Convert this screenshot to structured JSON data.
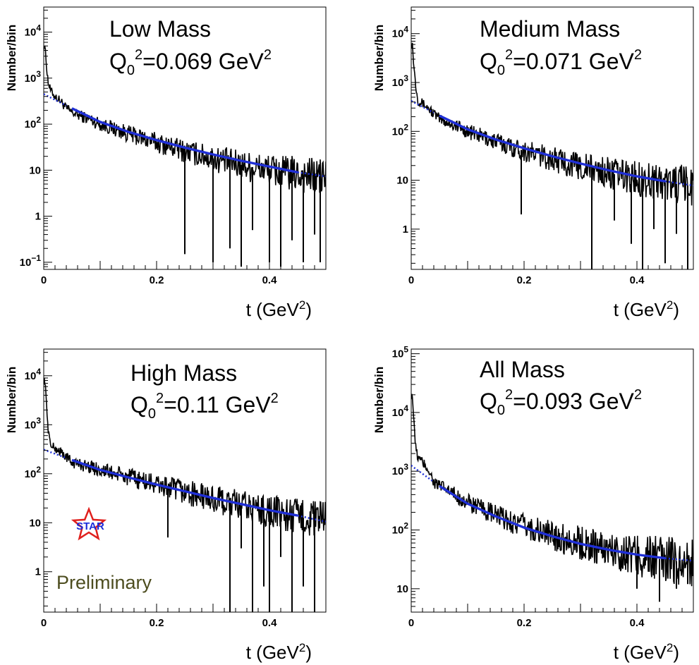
{
  "figure": {
    "preliminary_label": "Preliminary",
    "logo_text": "STAR"
  },
  "chart_data": [
    {
      "type": "line",
      "title": "Low Mass",
      "q0_label": "Q",
      "q0_sub": "0",
      "q0_sup": "2",
      "q0_value": "=0.069 GeV",
      "q0_value_sup": "2",
      "xlabel": "t (GeV",
      "xlabel_sup": "2",
      "xlabel_close": ")",
      "ylabel": "Number/bin",
      "yscale": "log",
      "ylim": [
        0.07,
        35000
      ],
      "xlim": [
        0,
        0.5
      ],
      "x_ticks": [
        "0",
        "0.2",
        "0.4"
      ],
      "y_ticks": [
        {
          "value": 0.1,
          "base": "10",
          "exp": "−1"
        },
        {
          "value": 1,
          "base": "1",
          "exp": ""
        },
        {
          "value": 10,
          "base": "10",
          "exp": ""
        },
        {
          "value": 100,
          "base": "10",
          "exp": "2"
        },
        {
          "value": 1000,
          "base": "10",
          "exp": "3"
        },
        {
          "value": 10000,
          "base": "10",
          "exp": "4"
        }
      ],
      "series": [
        {
          "name": "data",
          "color": "#000000",
          "x": [
            0.002,
            0.005,
            0.008,
            0.012,
            0.02,
            0.03,
            0.04,
            0.05,
            0.06,
            0.08,
            0.1,
            0.15,
            0.2,
            0.25,
            0.3,
            0.35,
            0.4,
            0.45,
            0.5
          ],
          "values": [
            5000,
            1800,
            800,
            550,
            400,
            320,
            220,
            180,
            160,
            130,
            100,
            62,
            40,
            26,
            18,
            13,
            10,
            8,
            7
          ],
          "dips": [
            [
              0.25,
              0.15
            ],
            [
              0.3,
              0.1
            ],
            [
              0.35,
              0.08
            ],
            [
              0.33,
              0.2
            ],
            [
              0.37,
              0.5
            ],
            [
              0.4,
              0.1
            ],
            [
              0.42,
              0.08
            ],
            [
              0.44,
              0.3
            ],
            [
              0.46,
              0.1
            ],
            [
              0.48,
              0.4
            ],
            [
              0.49,
              0.1
            ]
          ]
        },
        {
          "name": "fit",
          "color": "#1f2fd6",
          "x": [
            0.0,
            0.05,
            0.1,
            0.15,
            0.2,
            0.25,
            0.3,
            0.35,
            0.4,
            0.45,
            0.5
          ],
          "values": [
            450,
            220,
            112,
            68,
            45,
            31,
            22,
            16,
            12,
            9,
            7.3
          ]
        }
      ]
    },
    {
      "type": "line",
      "title": "Medium Mass",
      "q0_label": "Q",
      "q0_sub": "0",
      "q0_sup": "2",
      "q0_value": "=0.071 GeV",
      "q0_value_sup": "2",
      "xlabel": "t (GeV",
      "xlabel_sup": "2",
      "xlabel_close": ")",
      "ylabel": "Number/bin",
      "yscale": "log",
      "ylim": [
        0.15,
        35000
      ],
      "xlim": [
        0,
        0.5
      ],
      "x_ticks": [
        "0",
        "0.2",
        "0.4"
      ],
      "y_ticks": [
        {
          "value": 1,
          "base": "1",
          "exp": ""
        },
        {
          "value": 10,
          "base": "10",
          "exp": ""
        },
        {
          "value": 100,
          "base": "10",
          "exp": "2"
        },
        {
          "value": 1000,
          "base": "10",
          "exp": "3"
        },
        {
          "value": 10000,
          "base": "10",
          "exp": "4"
        }
      ],
      "series": [
        {
          "name": "data",
          "color": "#000000",
          "x": [
            0.002,
            0.005,
            0.008,
            0.012,
            0.02,
            0.03,
            0.04,
            0.05,
            0.06,
            0.08,
            0.1,
            0.15,
            0.2,
            0.25,
            0.3,
            0.35,
            0.4,
            0.45,
            0.5
          ],
          "values": [
            6000,
            2000,
            900,
            420,
            380,
            300,
            230,
            180,
            160,
            130,
            100,
            62,
            40,
            27,
            19,
            14,
            11,
            9,
            7.5
          ],
          "dips": [
            [
              0.195,
              2
            ],
            [
              0.32,
              0.15
            ],
            [
              0.36,
              1.5
            ],
            [
              0.39,
              0.5
            ],
            [
              0.41,
              0.15
            ],
            [
              0.43,
              1
            ],
            [
              0.45,
              0.2
            ],
            [
              0.47,
              0.8
            ],
            [
              0.49,
              0.15
            ]
          ]
        },
        {
          "name": "fit",
          "color": "#1f2fd6",
          "x": [
            0.0,
            0.05,
            0.1,
            0.15,
            0.2,
            0.25,
            0.3,
            0.35,
            0.4,
            0.45,
            0.5
          ],
          "values": [
            420,
            210,
            110,
            68,
            45,
            31,
            22,
            16,
            12,
            9.5,
            7.8
          ]
        }
      ]
    },
    {
      "type": "line",
      "title": "High Mass",
      "q0_label": "Q",
      "q0_sub": "0",
      "q0_sup": "2",
      "q0_value": "=0.11 GeV",
      "q0_value_sup": "2",
      "xlabel": "t (GeV",
      "xlabel_sup": "2",
      "xlabel_close": ")",
      "ylabel": "Number/bin",
      "yscale": "log",
      "ylim": [
        0.15,
        35000
      ],
      "xlim": [
        0,
        0.5
      ],
      "x_ticks": [
        "0",
        "0.2",
        "0.4"
      ],
      "y_ticks": [
        {
          "value": 1,
          "base": "1",
          "exp": ""
        },
        {
          "value": 10,
          "base": "10",
          "exp": ""
        },
        {
          "value": 100,
          "base": "10",
          "exp": "2"
        },
        {
          "value": 1000,
          "base": "10",
          "exp": "3"
        },
        {
          "value": 10000,
          "base": "10",
          "exp": "4"
        }
      ],
      "series": [
        {
          "name": "data",
          "color": "#000000",
          "x": [
            0.002,
            0.005,
            0.008,
            0.012,
            0.02,
            0.03,
            0.04,
            0.05,
            0.06,
            0.08,
            0.1,
            0.15,
            0.2,
            0.25,
            0.3,
            0.35,
            0.4,
            0.45,
            0.5
          ],
          "values": [
            8000,
            2500,
            800,
            380,
            330,
            280,
            220,
            170,
            160,
            140,
            120,
            85,
            60,
            42,
            30,
            22,
            17,
            13,
            11
          ],
          "dips": [
            [
              0.22,
              5
            ],
            [
              0.33,
              0.15
            ],
            [
              0.35,
              3
            ],
            [
              0.37,
              0.15
            ],
            [
              0.39,
              0.5
            ],
            [
              0.4,
              0.15
            ],
            [
              0.42,
              2
            ],
            [
              0.44,
              0.15
            ],
            [
              0.46,
              0.5
            ],
            [
              0.48,
              0.15
            ]
          ]
        },
        {
          "name": "fit",
          "color": "#1f2fd6",
          "x": [
            0.0,
            0.05,
            0.1,
            0.15,
            0.2,
            0.25,
            0.3,
            0.35,
            0.4,
            0.45,
            0.5
          ],
          "values": [
            310,
            190,
            120,
            84,
            60,
            44,
            32,
            24,
            18,
            14,
            10.5
          ]
        }
      ]
    },
    {
      "type": "line",
      "title": "All Mass",
      "q0_label": "Q",
      "q0_sub": "0",
      "q0_sup": "2",
      "q0_value": "=0.093 GeV",
      "q0_value_sup": "2",
      "xlabel": "t (GeV",
      "xlabel_sup": "2",
      "xlabel_close": ")",
      "ylabel": "Number/bin",
      "yscale": "log",
      "ylim": [
        4,
        120000
      ],
      "xlim": [
        0,
        0.5
      ],
      "x_ticks": [
        "0",
        "0.2",
        "0.4"
      ],
      "y_ticks": [
        {
          "value": 10,
          "base": "10",
          "exp": ""
        },
        {
          "value": 100,
          "base": "10",
          "exp": "2"
        },
        {
          "value": 1000,
          "base": "10",
          "exp": "3"
        },
        {
          "value": 10000,
          "base": "10",
          "exp": "4"
        },
        {
          "value": 100000,
          "base": "10",
          "exp": "5"
        }
      ],
      "series": [
        {
          "name": "data",
          "color": "#000000",
          "x": [
            0.002,
            0.005,
            0.008,
            0.012,
            0.02,
            0.03,
            0.04,
            0.05,
            0.06,
            0.08,
            0.1,
            0.15,
            0.2,
            0.25,
            0.3,
            0.35,
            0.4,
            0.45,
            0.5
          ],
          "values": [
            20000,
            6000,
            2500,
            1700,
            1400,
            1100,
            650,
            560,
            500,
            380,
            290,
            175,
            115,
            80,
            60,
            46,
            37,
            31,
            27
          ],
          "dips": [
            [
              0.4,
              10
            ],
            [
              0.44,
              6
            ],
            [
              0.47,
              10
            ],
            [
              0.49,
              12
            ]
          ]
        },
        {
          "name": "fit",
          "color": "#1f2fd6",
          "x": [
            0.0,
            0.05,
            0.1,
            0.15,
            0.2,
            0.25,
            0.3,
            0.35,
            0.4,
            0.45,
            0.5
          ],
          "values": [
            1250,
            560,
            280,
            170,
            110,
            78,
            58,
            46,
            38,
            33,
            30
          ]
        }
      ]
    }
  ]
}
